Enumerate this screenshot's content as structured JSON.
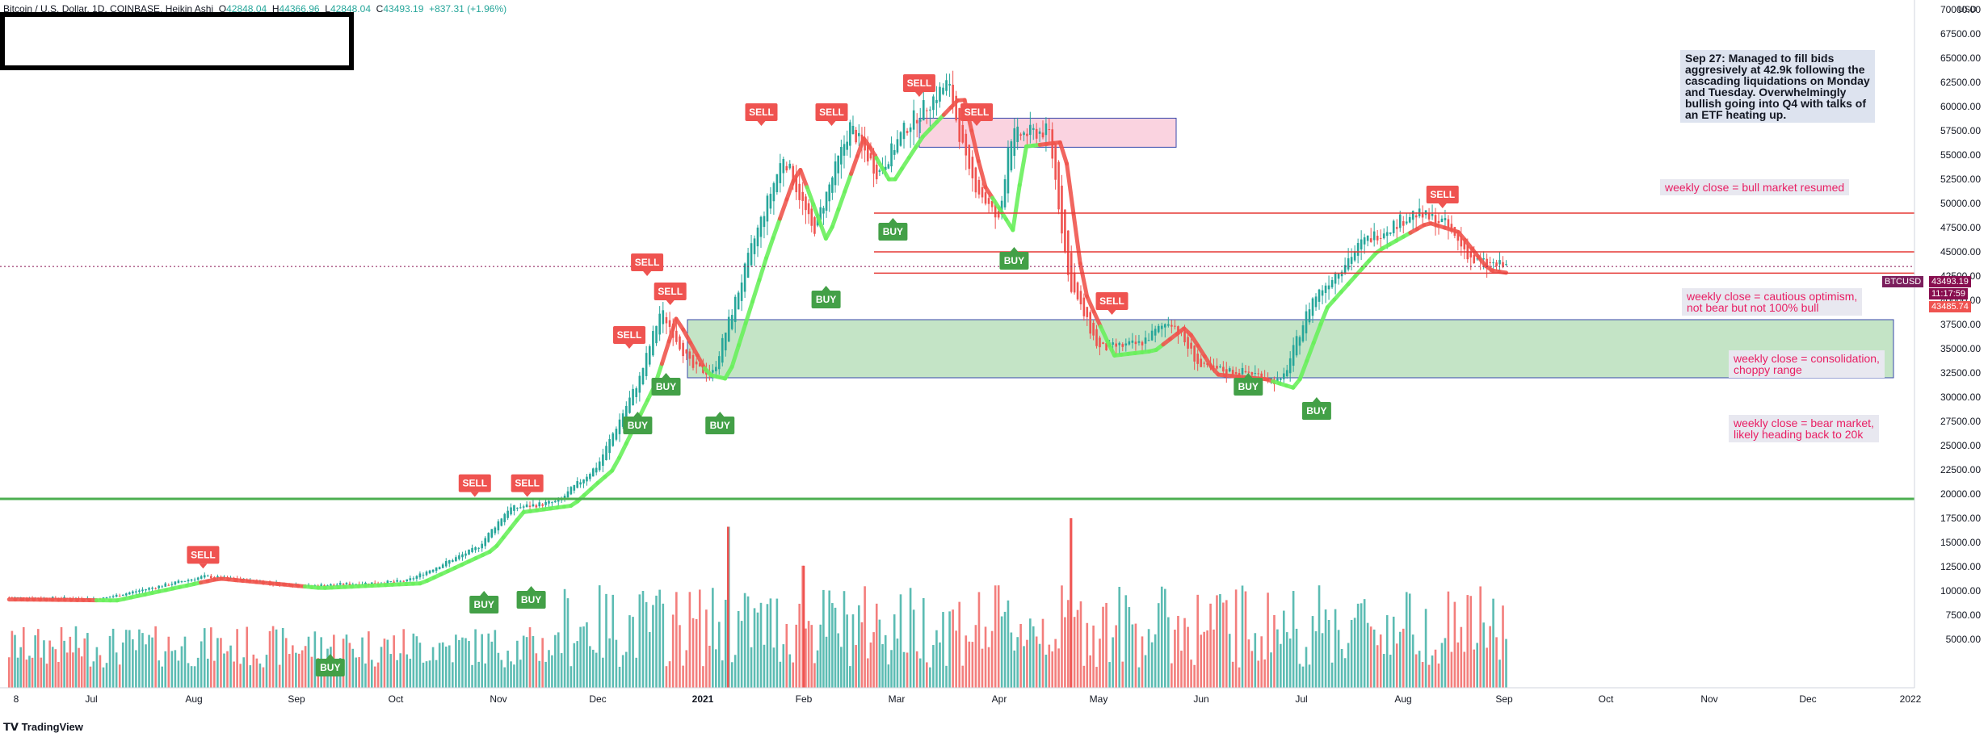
{
  "header": {
    "symbol": "Bitcoin / U.S. Dollar, 1D, COINBASE, Heikin Ashi",
    "o_label": "O",
    "o_value": "42848.04",
    "h_label": "H",
    "h_value": "44366.96",
    "l_label": "L",
    "l_value": "42848.04",
    "c_label": "C",
    "c_value": "43493.19",
    "change": "+837.31 (+1.96%)"
  },
  "axis_currency": "USD",
  "footer_brand": "TradingView",
  "price_tags": {
    "ticker": "BTCUSD",
    "last": "43493.19",
    "countdown": "11:17:59",
    "open": "43485.74"
  },
  "notes": {
    "main": "Sep 27: Managed to fill bids\naggresively at 42.9k following the\ncascading liquidations on Monday\nand Tuesday. Overwhelmingly\nbullish going into Q4 with talks of\nan ETF heating up.",
    "bull": "weekly close = bull market resumed",
    "cautious": "weekly close = cautious optimism,\nnot bear but not 100% bull",
    "consolidation": "weekly close = consolidation,\nchoppy range",
    "bear": "weekly close = bear market,\nlikely heading back to 20k"
  },
  "colors": {
    "up": "#26a69a",
    "down": "#ef5350",
    "buy": "#43a047",
    "sell": "#ef5350",
    "trend_up": "#69f05c",
    "trend_down": "#f0554e",
    "zone_green": "#a5d6a7",
    "zone_red": "#f8bbd0",
    "hline_red": "#e53935",
    "hline_green": "#4caf50"
  },
  "chart_data": {
    "type": "candlestick",
    "title": "Bitcoin / U.S. Dollar, 1D, COINBASE, Heikin Ashi",
    "ylabel": "USD",
    "ylim": [
      0,
      70000
    ],
    "x_ticks": [
      "8",
      "Jul",
      "Aug",
      "Sep",
      "Oct",
      "Nov",
      "Dec",
      "2021",
      "Feb",
      "Mar",
      "Apr",
      "May",
      "Jun",
      "Jul",
      "Aug",
      "Sep",
      "Oct",
      "Nov",
      "Dec",
      "2022"
    ],
    "y_ticks": [
      "70000.00",
      "67500.00",
      "65000.00",
      "62500.00",
      "60000.00",
      "57500.00",
      "55000.00",
      "52500.00",
      "50000.00",
      "47500.00",
      "45000.00",
      "42500.00",
      "40000.00",
      "37500.00",
      "35000.00",
      "32500.00",
      "30000.00",
      "27500.00",
      "25000.00",
      "22500.00",
      "20000.00",
      "17500.00",
      "15000.00",
      "12500.00",
      "10000.00",
      "7500.00",
      "5000.00"
    ],
    "price_path": [
      {
        "m": 0,
        "p": 9300
      },
      {
        "m": 1,
        "p": 9200
      },
      {
        "m": 2,
        "p": 11500
      },
      {
        "m": 3,
        "p": 10500
      },
      {
        "m": 4,
        "p": 11000
      },
      {
        "m": 4.7,
        "p": 14500
      },
      {
        "m": 5,
        "p": 18500
      },
      {
        "m": 5.5,
        "p": 19200
      },
      {
        "m": 5.9,
        "p": 23000
      },
      {
        "m": 6.3,
        "p": 32000
      },
      {
        "m": 6.5,
        "p": 39000
      },
      {
        "m": 6.8,
        "p": 33000
      },
      {
        "m": 7,
        "p": 32500
      },
      {
        "m": 7.4,
        "p": 46000
      },
      {
        "m": 7.7,
        "p": 55000
      },
      {
        "m": 8,
        "p": 47000
      },
      {
        "m": 8.4,
        "p": 58000
      },
      {
        "m": 8.7,
        "p": 53000
      },
      {
        "m": 9,
        "p": 58000
      },
      {
        "m": 9.4,
        "p": 62500
      },
      {
        "m": 9.6,
        "p": 53000
      },
      {
        "m": 9.9,
        "p": 48000
      },
      {
        "m": 10,
        "p": 57000
      },
      {
        "m": 10.4,
        "p": 57500
      },
      {
        "m": 10.6,
        "p": 42000
      },
      {
        "m": 10.9,
        "p": 35000
      },
      {
        "m": 11.3,
        "p": 35500
      },
      {
        "m": 11.6,
        "p": 38000
      },
      {
        "m": 11.9,
        "p": 33000
      },
      {
        "m": 12.4,
        "p": 32500
      },
      {
        "m": 12.7,
        "p": 31500
      },
      {
        "m": 13,
        "p": 40000
      },
      {
        "m": 13.5,
        "p": 46000
      },
      {
        "m": 14,
        "p": 49000
      },
      {
        "m": 14.3,
        "p": 48000
      },
      {
        "m": 14.6,
        "p": 44000
      },
      {
        "m": 14.9,
        "p": 43500
      }
    ],
    "horizontal_levels": [
      {
        "price": 49000,
        "color": "#e53935",
        "from_month": 8.1,
        "label": "weekly close = bull market resumed"
      },
      {
        "price": 45000,
        "color": "#e53935",
        "from_month": 8.1,
        "label": ""
      },
      {
        "price": 42800,
        "color": "#e53935",
        "from_month": 8.1,
        "label": "weekly close = cautious optimism, not bear but not 100% bull"
      },
      {
        "price": 19500,
        "color": "#4caf50",
        "from_month": -1.2,
        "label": ""
      }
    ],
    "zones": [
      {
        "type": "consolidation",
        "price_top": 38000,
        "price_bottom": 32000,
        "from_month": 6.1,
        "to_month": 18.0,
        "color": "#a5d6a7"
      },
      {
        "type": "resistance",
        "price_top": 58800,
        "price_bottom": 55800,
        "from_month": 8.6,
        "to_month": 11.1,
        "color": "#f8bbd0"
      }
    ],
    "signals": [
      {
        "type": "SELL",
        "m": 1.99,
        "price": 12800
      },
      {
        "type": "BUY",
        "m": 3.24,
        "price": 3000
      },
      {
        "type": "SELL",
        "m": 4.67,
        "price": 20200
      },
      {
        "type": "SELL",
        "m": 5.19,
        "price": 20200
      },
      {
        "type": "BUY",
        "m": 4.76,
        "price": 9500
      },
      {
        "type": "BUY",
        "m": 5.23,
        "price": 10000
      },
      {
        "type": "SELL",
        "m": 6.37,
        "price": 43000
      },
      {
        "type": "SELL",
        "m": 6.59,
        "price": 40000
      },
      {
        "type": "SELL",
        "m": 6.2,
        "price": 35500
      },
      {
        "type": "BUY",
        "m": 6.28,
        "price": 28000
      },
      {
        "type": "BUY",
        "m": 6.55,
        "price": 32000
      },
      {
        "type": "BUY",
        "m": 7.07,
        "price": 28000
      },
      {
        "type": "SELL",
        "m": 7.48,
        "price": 58500
      },
      {
        "type": "SELL",
        "m": 8.2,
        "price": 58500
      },
      {
        "type": "SELL",
        "m": 9.12,
        "price": 61500
      },
      {
        "type": "SELL",
        "m": 9.68,
        "price": 58500
      },
      {
        "type": "BUY",
        "m": 8.14,
        "price": 41000
      },
      {
        "type": "BUY",
        "m": 8.86,
        "price": 48000
      },
      {
        "type": "BUY",
        "m": 10.05,
        "price": 45000
      },
      {
        "type": "SELL",
        "m": 11.03,
        "price": 39000
      },
      {
        "type": "BUY",
        "m": 12.37,
        "price": 32000
      },
      {
        "type": "BUY",
        "m": 13.05,
        "price": 29500
      },
      {
        "type": "SELL",
        "m": 14.29,
        "price": 50000
      }
    ],
    "volume_spikes": [
      {
        "m": 7.15,
        "rel": 0.95
      },
      {
        "m": 7.9,
        "rel": 0.72
      },
      {
        "m": 10.62,
        "rel": 1.0
      }
    ],
    "last_price": 43493.19,
    "current_month": 14.92
  }
}
